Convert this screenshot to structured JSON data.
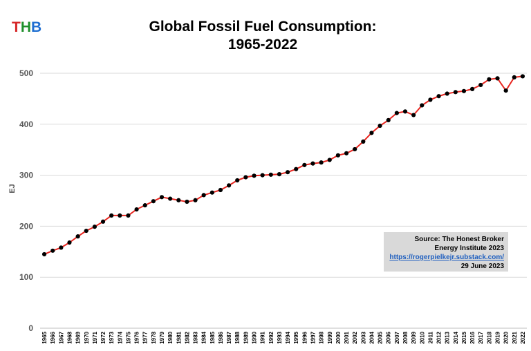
{
  "logo": {
    "t": "T",
    "h": "H",
    "b": "B"
  },
  "title_line1": "Global Fossil Fuel Consumption:",
  "title_line2": "1965-2022",
  "source": {
    "line1": "Source: The Honest Broker",
    "line2": "Energy Institute 2023",
    "link": "https://rogerpielkejr.substack.com/",
    "date": "29 June 2023"
  },
  "colors": {
    "line": "#e8251f",
    "marker": "#000000",
    "grid": "#d9d9d9",
    "box": "#d9d9d9"
  },
  "chart_data": {
    "type": "line",
    "title": "Global Fossil Fuel Consumption: 1965-2022",
    "xlabel": "",
    "ylabel": "EJ",
    "ylim": [
      0,
      500
    ],
    "yticks": [
      0,
      100,
      200,
      300,
      400,
      500
    ],
    "grid": true,
    "x": [
      "1965",
      "1966",
      "1967",
      "1968",
      "1969",
      "1970",
      "1971",
      "1972",
      "1973",
      "1974",
      "1975",
      "1976",
      "1977",
      "1978",
      "1979",
      "1980",
      "1981",
      "1982",
      "1983",
      "1984",
      "1985",
      "1986",
      "1987",
      "1988",
      "1989",
      "1990",
      "1991",
      "1992",
      "1993",
      "1994",
      "1995",
      "1996",
      "1997",
      "1998",
      "1999",
      "2000",
      "2001",
      "2002",
      "2003",
      "2004",
      "2005",
      "2006",
      "2007",
      "2008",
      "2009",
      "2010",
      "2011",
      "2012",
      "2013",
      "2014",
      "2015",
      "2016",
      "2017",
      "2018",
      "2019",
      "2020",
      "2021",
      "2022"
    ],
    "series": [
      {
        "values": [
          145,
          152,
          158,
          168,
          180,
          191,
          199,
          209,
          221,
          221,
          221,
          233,
          241,
          249,
          257,
          254,
          251,
          248,
          251,
          261,
          266,
          271,
          280,
          290,
          296,
          299,
          300,
          301,
          302,
          306,
          312,
          320,
          323,
          325,
          330,
          339,
          343,
          351,
          366,
          383,
          397,
          408,
          422,
          425,
          418,
          437,
          448,
          455,
          460,
          463,
          465,
          469,
          477,
          488,
          490,
          466,
          492,
          494
        ]
      }
    ]
  }
}
